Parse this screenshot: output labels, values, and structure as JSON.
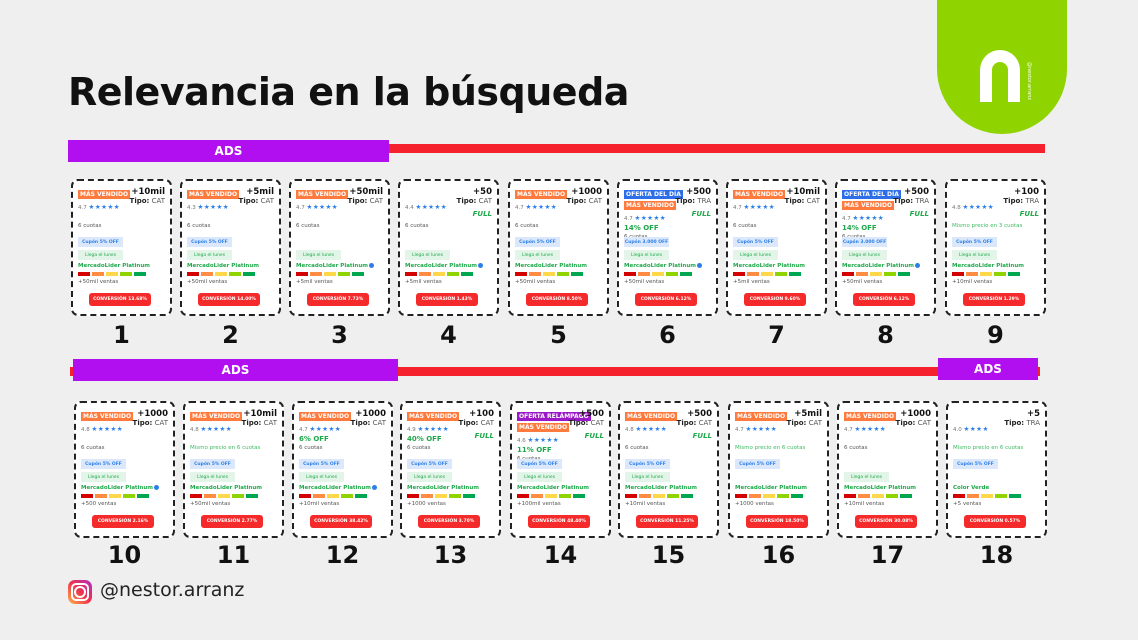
{
  "title": "Relevancia en la búsqueda",
  "logo": {
    "tag": "@nestor.arranz"
  },
  "ads_label": "ADS",
  "handle": "@nestor.arranz",
  "colors": {
    "ads": "#b10ff0",
    "line": "#f5222d",
    "mas_vendido": "#ff7a3d",
    "oferta_dia": "#2d6fe8",
    "oferta_relampago": "#9b18c8",
    "conversion": "#f52a2a",
    "logo": "#8fd400"
  },
  "reputation_colors": [
    "#d40000",
    "#ff8c42",
    "#ffd84a",
    "#8fd400",
    "#00a650"
  ],
  "tipo_label": "Tipo:",
  "cards": [
    {
      "n": "1",
      "badges": [
        {
          "t": "MÁS VENDIDO",
          "c": "#ff7a3d"
        }
      ],
      "sales": "+10mil",
      "tipo": "CAT",
      "rating": "4.7",
      "stars": "★★★★★",
      "full": "",
      "off": "",
      "cuotas": "6 cuotas",
      "mismo": "",
      "cupon": "Cupón 5% OFF",
      "llega": "Llega el lunes",
      "seller": "MercadoLider Platinum",
      "verified": false,
      "ventas": "+50mil ventas",
      "conv": "CONVERSIÓN 13.68%"
    },
    {
      "n": "2",
      "badges": [
        {
          "t": "MÁS VENDIDO",
          "c": "#ff7a3d"
        }
      ],
      "sales": "+5mil",
      "tipo": "CAT",
      "rating": "4.3",
      "stars": "★★★★★",
      "full": "",
      "off": "",
      "cuotas": "6 cuotas",
      "mismo": "",
      "cupon": "Cupón 5% OFF",
      "llega": "Llega el lunes",
      "seller": "MercadoLider Platinum",
      "verified": false,
      "ventas": "+50mil ventas",
      "conv": "CONVERSIÓN 14.00%"
    },
    {
      "n": "3",
      "badges": [
        {
          "t": "MÁS VENDIDO",
          "c": "#ff7a3d"
        }
      ],
      "sales": "+50mil",
      "tipo": "CAT",
      "rating": "4.7",
      "stars": "★★★★★",
      "full": "",
      "off": "",
      "cuotas": "6 cuotas",
      "mismo": "",
      "cupon": "",
      "llega": "Llega el lunes",
      "seller": "MercadoLider Platinum",
      "verified": true,
      "ventas": "+5mil ventas",
      "conv": "CONVERSIÓN 7.73%"
    },
    {
      "n": "4",
      "badges": [],
      "sales": "+50",
      "tipo": "CAT",
      "rating": "4.4",
      "stars": "★★★★★",
      "full": "FULL",
      "off": "",
      "cuotas": "6 cuotas",
      "mismo": "",
      "cupon": "",
      "llega": "Llega el lunes",
      "seller": "MercadoLider Platinum",
      "verified": true,
      "ventas": "+5mil ventas",
      "conv": "CONVERSIÓN 1.43%"
    },
    {
      "n": "5",
      "badges": [
        {
          "t": "MÁS VENDIDO",
          "c": "#ff7a3d"
        }
      ],
      "sales": "+1000",
      "tipo": "CAT",
      "rating": "4.7",
      "stars": "★★★★★",
      "full": "",
      "off": "",
      "cuotas": "6 cuotas",
      "mismo": "",
      "cupon": "Cupón 5% OFF",
      "llega": "Llega el lunes",
      "seller": "MercadoLider Platinum",
      "verified": false,
      "ventas": "+50mil ventas",
      "conv": "CONVERSIÓN 8.50%"
    },
    {
      "n": "6",
      "badges": [
        {
          "t": "OFERTA DEL DÍA",
          "c": "#2d6fe8"
        },
        {
          "t": "MÁS VENDIDO",
          "c": "#ff7a3d"
        }
      ],
      "sales": "+500",
      "tipo": "TRA",
      "rating": "4.7",
      "stars": "★★★★★",
      "full": "FULL",
      "off": "14% OFF",
      "cuotas": "6 cuotas",
      "mismo": "",
      "cupon": "Cupón 3.000 OFF",
      "llega": "Llega el lunes",
      "seller": "MercadoLider Platinum",
      "verified": true,
      "ventas": "+50mil ventas",
      "conv": "CONVERSIÓN 6.12%"
    },
    {
      "n": "7",
      "badges": [
        {
          "t": "MÁS VENDIDO",
          "c": "#ff7a3d"
        }
      ],
      "sales": "+10mil",
      "tipo": "CAT",
      "rating": "4.7",
      "stars": "★★★★★",
      "full": "",
      "off": "",
      "cuotas": "6 cuotas",
      "mismo": "",
      "cupon": "Cupón 5% OFF",
      "llega": "Llega el lunes",
      "seller": "MercadoLider Platinum",
      "verified": false,
      "ventas": "+5mil ventas",
      "conv": "CONVERSIÓN 9.60%"
    },
    {
      "n": "8",
      "badges": [
        {
          "t": "OFERTA DEL DÍA",
          "c": "#2d6fe8"
        },
        {
          "t": "MÁS VENDIDO",
          "c": "#ff7a3d"
        }
      ],
      "sales": "+500",
      "tipo": "TRA",
      "rating": "4.7",
      "stars": "★★★★★",
      "full": "FULL",
      "off": "14% OFF",
      "cuotas": "6 cuotas",
      "mismo": "",
      "cupon": "Cupón 3.000 OFF",
      "llega": "Llega el lunes",
      "seller": "MercadoLider Platinum",
      "verified": true,
      "ventas": "+50mil ventas",
      "conv": "CONVERSIÓN 6.12%"
    },
    {
      "n": "9",
      "badges": [],
      "sales": "+100",
      "tipo": "TRA",
      "rating": "4.8",
      "stars": "★★★★★",
      "full": "FULL",
      "off": "",
      "cuotas": "",
      "mismo": "Mismo precio en 3 cuotas",
      "cupon": "Cupón 5% OFF",
      "llega": "Llega el lunes",
      "seller": "MercadoLider Platinum",
      "verified": false,
      "ventas": "+10mil ventas",
      "conv": "CONVERSIÓN 1.29%"
    },
    {
      "n": "10",
      "badges": [
        {
          "t": "MÁS VENDIDO",
          "c": "#ff7a3d"
        }
      ],
      "sales": "+1000",
      "tipo": "CAT",
      "rating": "4.8",
      "stars": "★★★★★",
      "full": "",
      "off": "",
      "cuotas": "6 cuotas",
      "mismo": "",
      "cupon": "Cupón 5% OFF",
      "llega": "Llega el lunes",
      "seller": "MercadoLider Platinum",
      "verified": true,
      "ventas": "+500 ventas",
      "conv": "CONVERSIÓN 2.16%"
    },
    {
      "n": "11",
      "badges": [
        {
          "t": "MÁS VENDIDO",
          "c": "#ff7a3d"
        }
      ],
      "sales": "+10mil",
      "tipo": "CAT",
      "rating": "4.8",
      "stars": "★★★★★",
      "full": "",
      "off": "",
      "cuotas": "",
      "mismo": "Mismo precio en 6 cuotas",
      "cupon": "Cupón 5% OFF",
      "llega": "Llega el lunes",
      "seller": "MercadoLider Platinum",
      "verified": false,
      "ventas": "+50mil ventas",
      "conv": "CONVERSIÓN 2.77%"
    },
    {
      "n": "12",
      "badges": [
        {
          "t": "MÁS VENDIDO",
          "c": "#ff7a3d"
        }
      ],
      "sales": "+1000",
      "tipo": "CAT",
      "rating": "4.7",
      "stars": "★★★★★",
      "full": "",
      "off": "6% OFF",
      "cuotas": "6 cuotas",
      "mismo": "",
      "cupon": "Cupón 5% OFF",
      "llega": "Llega el lunes",
      "seller": "MercadoLider Platinum",
      "verified": true,
      "ventas": "+10mil ventas",
      "conv": "CONVERSIÓN 38.42%"
    },
    {
      "n": "13",
      "badges": [
        {
          "t": "MÁS VENDIDO",
          "c": "#ff7a3d"
        }
      ],
      "sales": "+100",
      "tipo": "CAT",
      "rating": "4.9",
      "stars": "★★★★★",
      "full": "FULL",
      "off": "40% OFF",
      "cuotas": "6 cuotas",
      "mismo": "",
      "cupon": "Cupón 5% OFF",
      "llega": "Llega el lunes",
      "seller": "MercadoLider Platinum",
      "verified": false,
      "ventas": "+1000 ventas",
      "conv": "CONVERSIÓN 3.70%"
    },
    {
      "n": "14",
      "badges": [
        {
          "t": "OFERTA RELÁMPAGO",
          "c": "#9b18c8"
        },
        {
          "t": "MÁS VENDIDO",
          "c": "#ff7a3d"
        }
      ],
      "sales": "+500",
      "tipo": "CAT",
      "rating": "4.6",
      "stars": "★★★★★",
      "full": "FULL",
      "off": "11% OFF",
      "cuotas": "6 cuotas",
      "mismo": "",
      "cupon": "Cupón 5% OFF",
      "llega": "Llega el lunes",
      "seller": "MercadoLider Platinum",
      "verified": false,
      "ventas": "+100mil ventas",
      "conv": "CONVERSIÓN 48.40%"
    },
    {
      "n": "15",
      "badges": [
        {
          "t": "MÁS VENDIDO",
          "c": "#ff7a3d"
        }
      ],
      "sales": "+500",
      "tipo": "CAT",
      "rating": "4.8",
      "stars": "★★★★★",
      "full": "FULL",
      "off": "",
      "cuotas": "6 cuotas",
      "mismo": "",
      "cupon": "Cupón 5% OFF",
      "llega": "Llega el lunes",
      "seller": "MercadoLider Platinum",
      "verified": false,
      "ventas": "+10mil ventas",
      "conv": "CONVERSIÓN 11.25%"
    },
    {
      "n": "16",
      "badges": [
        {
          "t": "MÁS VENDIDO",
          "c": "#ff7a3d"
        }
      ],
      "sales": "+5mil",
      "tipo": "CAT",
      "rating": "4.7",
      "stars": "★★★★★",
      "full": "",
      "off": "",
      "cuotas": "",
      "mismo": "Mismo precio en 6 cuotas",
      "cupon": "Cupón 5% OFF",
      "llega": "",
      "seller": "MercadoLider Platinum",
      "verified": false,
      "ventas": "+1000 ventas",
      "conv": "CONVERSIÓN 18.50%"
    },
    {
      "n": "17",
      "badges": [
        {
          "t": "MÁS VENDIDO",
          "c": "#ff7a3d"
        }
      ],
      "sales": "+1000",
      "tipo": "CAT",
      "rating": "4.7",
      "stars": "★★★★★",
      "full": "",
      "off": "",
      "cuotas": "6 cuotas",
      "mismo": "",
      "cupon": "",
      "llega": "Llega el lunes",
      "seller": "MercadoLider Platinum",
      "verified": false,
      "ventas": "+10mil ventas",
      "conv": "CONVERSIÓN 30.08%"
    },
    {
      "n": "18",
      "badges": [],
      "sales": "+5",
      "tipo": "TRA",
      "rating": "4.0",
      "stars": "★★★★",
      "full": "",
      "off": "",
      "cuotas": "",
      "mismo": "Mismo precio en 6 cuotas",
      "cupon": "Cupón 5% OFF",
      "llega": "",
      "seller": "Color Verde",
      "verified": false,
      "ventas": "+5 ventas",
      "conv": "CONVERSIÓN 0.57%"
    }
  ]
}
